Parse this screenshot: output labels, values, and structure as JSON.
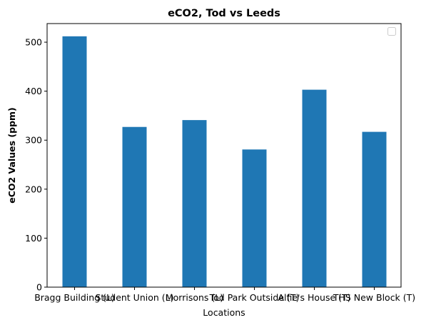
{
  "chart_data": {
    "type": "bar",
    "title": "eCO2, Tod vs Leeds",
    "xlabel": "Locations",
    "ylabel": "eCO2 Values (ppm)",
    "categories": [
      "Bragg Building (L)",
      "Student Union (L)",
      "Morrisons (L)",
      "Tod Park Outside (T)",
      "Alfie's House (T)",
      "THS New Block (T)"
    ],
    "values": [
      512,
      327,
      341,
      281,
      403,
      317
    ],
    "ylim": [
      0,
      538
    ],
    "yticks": [
      "0",
      "100",
      "200",
      "300",
      "400",
      "500"
    ],
    "grid": false,
    "legend": {
      "placement": "upper right",
      "entries": []
    },
    "colors": {
      "bar": "#1f77b4"
    }
  }
}
